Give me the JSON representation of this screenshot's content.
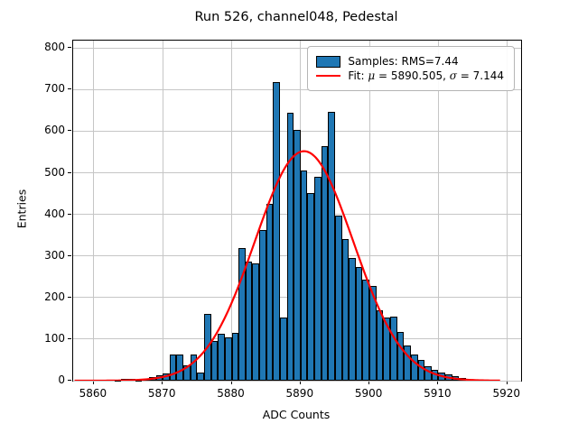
{
  "figure": {
    "title": "Run 526, channel048, Pedestal"
  },
  "axes": {
    "xlabel": "ADC Counts",
    "ylabel": "Entries",
    "xlim": [
      5857,
      5922
    ],
    "ylim": [
      0,
      818
    ],
    "xticks": [
      5860,
      5870,
      5880,
      5890,
      5900,
      5910,
      5920
    ],
    "yticks": [
      0,
      100,
      200,
      300,
      400,
      500,
      600,
      700,
      800
    ],
    "grid": true
  },
  "legend": {
    "samples_label": "Samples: RMS=7.44",
    "fit_prefix": "Fit: ",
    "fit_mu_symbol": "μ",
    "fit_mu_text": " = 5890.505, ",
    "fit_sigma_symbol": "σ",
    "fit_sigma_text": " = 7.144"
  },
  "chart_data": {
    "type": "bar",
    "subtype": "histogram",
    "title": "Run 526, channel048, Pedestal",
    "xlabel": "ADC Counts",
    "ylabel": "Entries",
    "xlim": [
      5857,
      5922
    ],
    "ylim": [
      0,
      818
    ],
    "grid": true,
    "legend_position": "upper right",
    "bin_width": 1,
    "bin_left_edges": [
      5863,
      5864,
      5865,
      5866,
      5867,
      5868,
      5869,
      5870,
      5871,
      5872,
      5873,
      5874,
      5875,
      5876,
      5877,
      5878,
      5879,
      5880,
      5881,
      5882,
      5883,
      5884,
      5885,
      5886,
      5887,
      5888,
      5889,
      5890,
      5891,
      5892,
      5893,
      5894,
      5895,
      5896,
      5897,
      5898,
      5899,
      5900,
      5901,
      5902,
      5903,
      5904,
      5905,
      5906,
      5907,
      5908,
      5909,
      5910,
      5911,
      5912,
      5913
    ],
    "counts": [
      2,
      4,
      5,
      2,
      5,
      8,
      12,
      18,
      64,
      62,
      36,
      62,
      20,
      160,
      96,
      113,
      105,
      115,
      320,
      287,
      283,
      363,
      425,
      718,
      152,
      645,
      603,
      505,
      452,
      491,
      565,
      647,
      398,
      340,
      295,
      274,
      244,
      228,
      170,
      152,
      155,
      118,
      84,
      64,
      50,
      34,
      25,
      19,
      16,
      11,
      6
    ],
    "series": [
      {
        "name": "Samples: RMS=7.44",
        "type": "histogram",
        "rms": 7.44,
        "fill": "#1f77b4",
        "edge": "#000000"
      },
      {
        "name": "Fit: μ = 5890.505, σ = 7.144",
        "type": "gaussian-line",
        "color": "#ff0000"
      }
    ],
    "fit": {
      "type": "gaussian",
      "mu": 5890.505,
      "sigma": 7.144,
      "peak": 552,
      "x_start": 5857.2,
      "x_end": 5919.0,
      "color": "#ff0000"
    },
    "colors": {
      "bar_fill": "#1f77b4",
      "bar_edge": "#000000",
      "fit_line": "#ff0000",
      "grid": "#c6c6c6",
      "background": "#ffffff"
    }
  }
}
